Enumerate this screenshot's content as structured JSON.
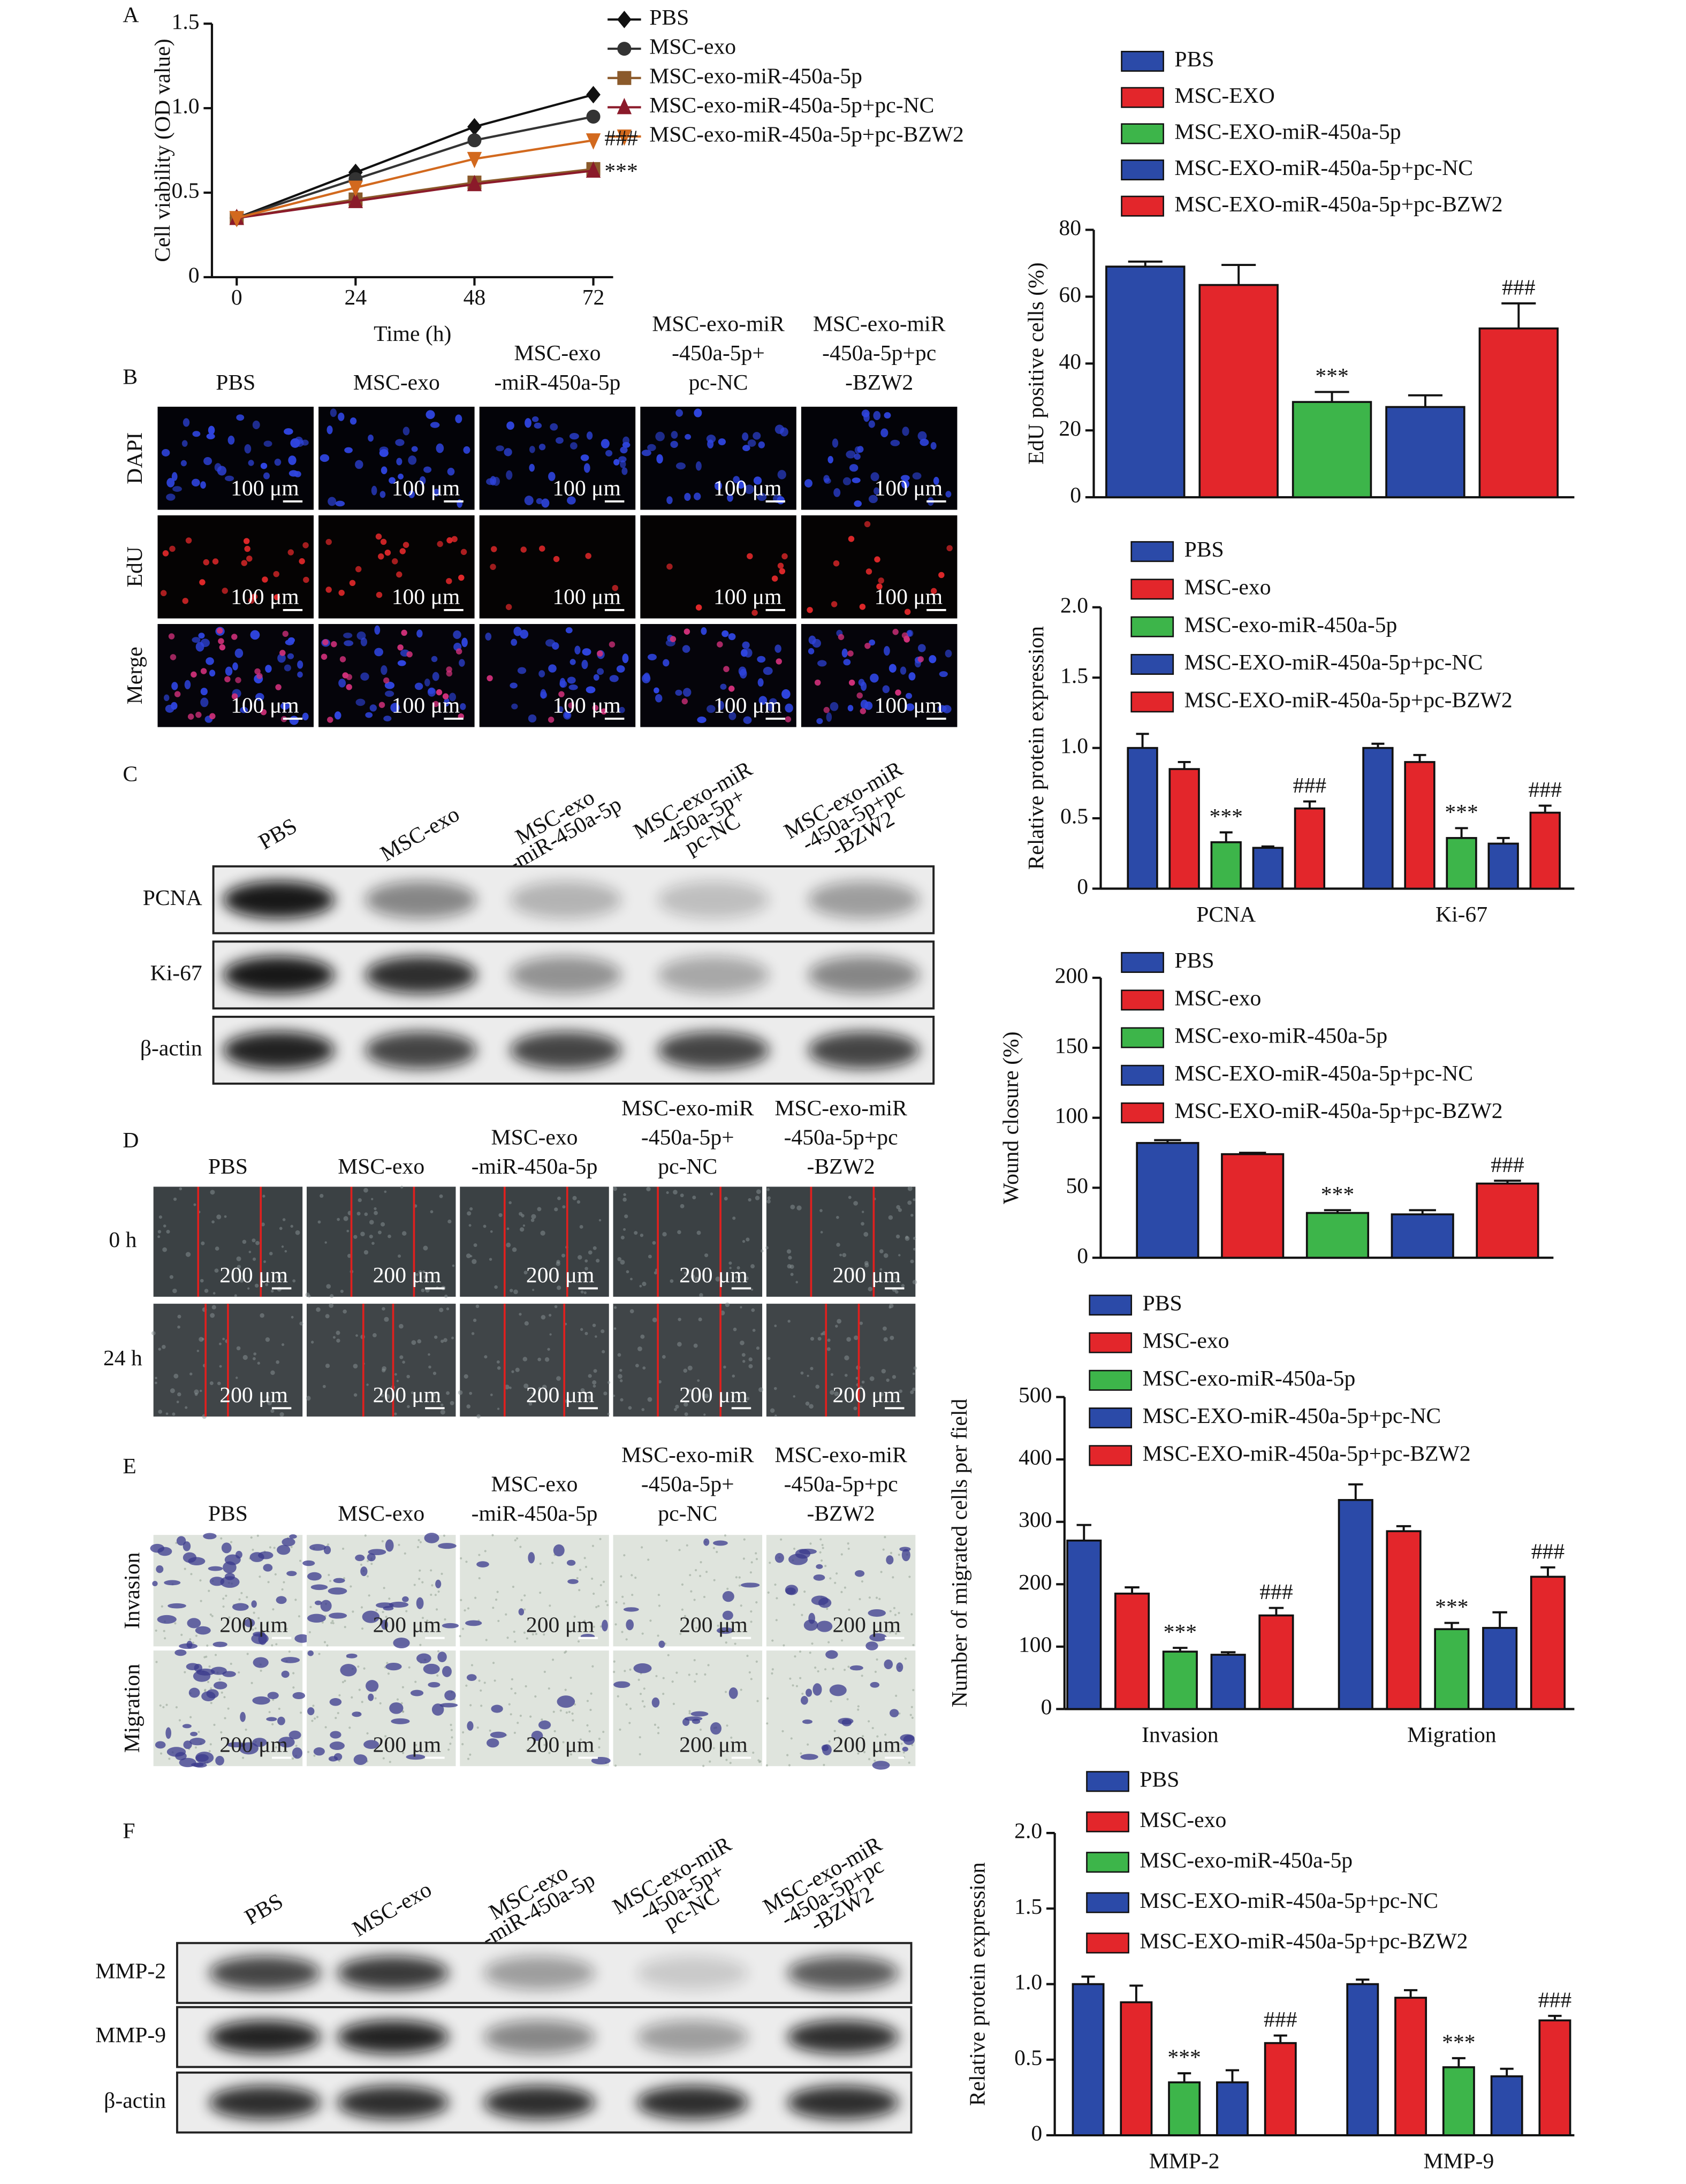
{
  "figure": {
    "letters": [
      "A",
      "B",
      "C",
      "D",
      "E",
      "F"
    ],
    "B": {
      "columns": [
        [
          "PBS"
        ],
        [
          "MSC-exo"
        ],
        [
          "MSC-exo",
          "-miR-450a-5p"
        ],
        [
          "MSC-exo-miR",
          "-450a-5p+",
          "pc-NC"
        ],
        [
          "MSC-exo-miR",
          "-450a-5p+pc",
          "-BZW2"
        ]
      ],
      "rows": [
        "DAPI",
        "EdU",
        "Merge"
      ],
      "scale": "100 μm"
    },
    "C": {
      "columns": [
        [
          "PBS"
        ],
        [
          "MSC-exo"
        ],
        [
          "MSC-exo",
          "-miR-450a-5p"
        ],
        [
          "MSC-exo-miR",
          "-450a-5p+",
          "pc-NC"
        ],
        [
          "MSC-exo-miR",
          "-450a-5p+pc",
          "-BZW2"
        ]
      ],
      "rows": [
        "PCNA",
        "Ki-67",
        "β-actin"
      ]
    },
    "D": {
      "columns": [
        [
          "PBS"
        ],
        [
          "MSC-exo"
        ],
        [
          "MSC-exo",
          "-miR-450a-5p"
        ],
        [
          "MSC-exo-miR",
          "-450a-5p+",
          "pc-NC"
        ],
        [
          "MSC-exo-miR",
          "-450a-5p+pc",
          "-BZW2"
        ]
      ],
      "rows": [
        "0 h",
        "24 h"
      ],
      "scale": "200 μm"
    },
    "E": {
      "columns": [
        [
          "PBS"
        ],
        [
          "MSC-exo"
        ],
        [
          "MSC-exo",
          "-miR-450a-5p"
        ],
        [
          "MSC-exo-miR",
          "-450a-5p+",
          "pc-NC"
        ],
        [
          "MSC-exo-miR",
          "-450a-5p+pc",
          "-BZW2"
        ]
      ],
      "rows": [
        "Invasion",
        "Migration"
      ],
      "scale": "200 μm"
    },
    "F": {
      "columns": [
        [
          "PBS"
        ],
        [
          "MSC-exo"
        ],
        [
          "MSC-exo",
          "-miR-450a-5p"
        ],
        [
          "MSC-exo-miR",
          "-450a-5p+",
          "pc-NC"
        ],
        [
          "MSC-exo-miR",
          "-450a-5p+pc",
          "-BZW2"
        ]
      ],
      "rows": [
        "MMP-2",
        "MMP-9",
        "β-actin"
      ]
    }
  },
  "chart_data": [
    {
      "type": "line",
      "xlabel": "Time (h)",
      "ylabel": "Cell viability (OD value)",
      "x": [
        0,
        24,
        48,
        72
      ],
      "xlim": [
        -5,
        76
      ],
      "xticks": [
        0,
        24,
        48,
        72
      ],
      "ylim": [
        0,
        1.5
      ],
      "yticks": [
        0,
        0.5,
        {
          "value": 1,
          "label": "1.0"
        },
        1.5
      ],
      "series": [
        {
          "name": "PBS",
          "color": "#111111",
          "marker": "diamond",
          "values": [
            0.35,
            0.62,
            0.89,
            1.08
          ]
        },
        {
          "name": "MSC-exo",
          "color": "#333333",
          "marker": "circle",
          "values": [
            0.35,
            0.58,
            0.81,
            0.95
          ]
        },
        {
          "name": "MSC-exo-miR-450a-5p",
          "color": "#8b5a2b",
          "marker": "square",
          "values": [
            0.35,
            0.46,
            0.56,
            0.64
          ]
        },
        {
          "name": "MSC-exo-miR-450a-5p+pc-NC",
          "color": "#8b1a2a",
          "marker": "triangle",
          "values": [
            0.35,
            0.45,
            0.55,
            0.63
          ]
        },
        {
          "name": "MSC-exo-miR-450a-5p+pc-BZW2",
          "color": "#d2691e",
          "marker": "triangle-down",
          "values": [
            0.35,
            0.53,
            0.7,
            0.81
          ]
        }
      ],
      "annotations": [
        "###",
        "***"
      ]
    },
    {
      "type": "bar",
      "ylabel": "EdU positive cells (%)",
      "categories": [
        null
      ],
      "ylim": [
        0,
        80
      ],
      "yticks": [
        0,
        20,
        40,
        60,
        80
      ],
      "series": [
        {
          "name": "PBS",
          "color": "#2b4aa8",
          "values": [
            69
          ],
          "errors": [
            1.5
          ]
        },
        {
          "name": "MSC-EXO",
          "color": "#e3262b",
          "values": [
            63.5
          ],
          "errors": [
            6
          ]
        },
        {
          "name": "MSC-EXO-miR-450a-5p",
          "color": "#3db54a",
          "values": [
            28.5
          ],
          "errors": [
            3
          ]
        },
        {
          "name": "MSC-EXO-miR-450a-5p+pc-NC",
          "color": "#2b4aa8",
          "values": [
            27
          ],
          "errors": [
            3.5
          ]
        },
        {
          "name": "MSC-EXO-miR-450a-5p+pc-BZW2",
          "color": "#e3262b",
          "values": [
            50.5
          ],
          "errors": [
            7.5
          ]
        }
      ],
      "annotations": [
        "***",
        "###"
      ]
    },
    {
      "type": "bar",
      "ylabel": "Relative protein expression",
      "categories": [
        "PCNA",
        "Ki-67"
      ],
      "ylim": [
        0,
        2
      ],
      "yticks": [
        0,
        0.5,
        {
          "value": 1,
          "label": "1.0"
        },
        1.5,
        {
          "value": 2,
          "label": "2.0"
        }
      ],
      "series": [
        {
          "name": "PBS",
          "color": "#2b4aa8",
          "values": [
            1.0,
            1.0
          ],
          "errors": [
            0.1,
            0.03
          ]
        },
        {
          "name": "MSC-exo",
          "color": "#e3262b",
          "values": [
            0.85,
            0.9
          ],
          "errors": [
            0.05,
            0.05
          ]
        },
        {
          "name": "MSC-exo-miR-450a-5p",
          "color": "#3db54a",
          "values": [
            0.33,
            0.36
          ],
          "errors": [
            0.07,
            0.07
          ]
        },
        {
          "name": "MSC-EXO-miR-450a-5p+pc-NC",
          "color": "#2b4aa8",
          "values": [
            0.29,
            0.32
          ],
          "errors": [
            0.01,
            0.04
          ]
        },
        {
          "name": "MSC-EXO-miR-450a-5p+pc-BZW2",
          "color": "#e3262b",
          "values": [
            0.57,
            0.54
          ],
          "errors": [
            0.05,
            0.05
          ]
        }
      ],
      "annotations": [
        "***",
        "###",
        "***",
        "###"
      ]
    },
    {
      "type": "bar",
      "ylabel": "Wound closure (%)",
      "categories": [
        null
      ],
      "ylim": [
        0,
        200
      ],
      "yticks": [
        0,
        50,
        100,
        150,
        200
      ],
      "series": [
        {
          "name": "PBS",
          "color": "#2b4aa8",
          "values": [
            82
          ],
          "errors": [
            2
          ]
        },
        {
          "name": "MSC-exo",
          "color": "#e3262b",
          "values": [
            74
          ],
          "errors": [
            1
          ]
        },
        {
          "name": "MSC-exo-miR-450a-5p",
          "color": "#3db54a",
          "values": [
            32
          ],
          "errors": [
            2
          ]
        },
        {
          "name": "MSC-EXO-miR-450a-5p+pc-NC",
          "color": "#2b4aa8",
          "values": [
            31
          ],
          "errors": [
            3
          ]
        },
        {
          "name": "MSC-EXO-miR-450a-5p+pc-BZW2",
          "color": "#e3262b",
          "values": [
            53
          ],
          "errors": [
            2
          ]
        }
      ],
      "annotations": [
        "***",
        "###"
      ]
    },
    {
      "type": "bar",
      "ylabel": "Number of migrated cells per field",
      "categories": [
        "Invasion",
        "Migration"
      ],
      "ylim": [
        0,
        500
      ],
      "yticks": [
        0,
        100,
        200,
        300,
        400,
        500
      ],
      "series": [
        {
          "name": "PBS",
          "color": "#2b4aa8",
          "values": [
            270,
            335
          ],
          "errors": [
            25,
            25
          ]
        },
        {
          "name": "MSC-exo",
          "color": "#e3262b",
          "values": [
            185,
            285
          ],
          "errors": [
            10,
            8
          ]
        },
        {
          "name": "MSC-exo-miR-450a-5p",
          "color": "#3db54a",
          "values": [
            92,
            128
          ],
          "errors": [
            6,
            10
          ]
        },
        {
          "name": "MSC-EXO-miR-450a-5p+pc-NC",
          "color": "#2b4aa8",
          "values": [
            87,
            130
          ],
          "errors": [
            4,
            25
          ]
        },
        {
          "name": "MSC-EXO-miR-450a-5p+pc-BZW2",
          "color": "#e3262b",
          "values": [
            150,
            212
          ],
          "errors": [
            12,
            15
          ]
        }
      ],
      "annotations": [
        "***",
        "###",
        "***",
        "###"
      ]
    },
    {
      "type": "bar",
      "ylabel": "Relative protein expression",
      "categories": [
        "MMP-2",
        "MMP-9"
      ],
      "ylim": [
        0,
        2
      ],
      "yticks": [
        0,
        0.5,
        {
          "value": 1,
          "label": "1.0"
        },
        1.5,
        {
          "value": 2,
          "label": "2.0"
        }
      ],
      "series": [
        {
          "name": "PBS",
          "color": "#2b4aa8",
          "values": [
            1.0,
            1.0
          ],
          "errors": [
            0.05,
            0.03
          ]
        },
        {
          "name": "MSC-exo",
          "color": "#e3262b",
          "values": [
            0.88,
            0.91
          ],
          "errors": [
            0.11,
            0.05
          ]
        },
        {
          "name": "MSC-exo-miR-450a-5p",
          "color": "#3db54a",
          "values": [
            0.35,
            0.45
          ],
          "errors": [
            0.06,
            0.06
          ]
        },
        {
          "name": "MSC-EXO-miR-450a-5p+pc-NC",
          "color": "#2b4aa8",
          "values": [
            0.35,
            0.39
          ],
          "errors": [
            0.08,
            0.05
          ]
        },
        {
          "name": "MSC-EXO-miR-450a-5p+pc-BZW2",
          "color": "#e3262b",
          "values": [
            0.61,
            0.76
          ],
          "errors": [
            0.05,
            0.03
          ]
        }
      ],
      "annotations": [
        "***",
        "###",
        "***",
        "###"
      ]
    }
  ]
}
